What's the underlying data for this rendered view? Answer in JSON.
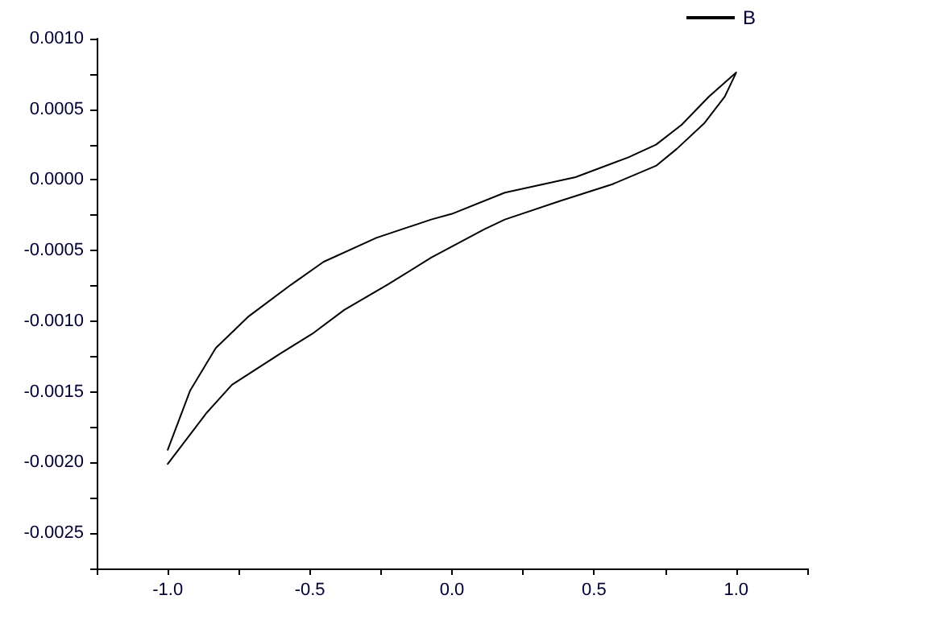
{
  "chart_data": {
    "type": "line",
    "series": [
      {
        "name": "B",
        "color": "#000000",
        "x": [
          -1.0,
          -0.864,
          -0.774,
          -0.605,
          -0.492,
          -0.379,
          -0.226,
          -0.073,
          0.113,
          0.186,
          0.379,
          0.565,
          0.718,
          0.791,
          0.887,
          0.96,
          1.0,
          0.904,
          0.808,
          0.718,
          0.621,
          0.435,
          0.186,
          0.0,
          -0.073,
          -0.266,
          -0.452,
          -0.565,
          -0.718,
          -0.831,
          -0.921,
          -1.0
        ],
        "values": [
          -0.00201,
          -0.00165,
          -0.00145,
          -0.00123,
          -0.00109,
          -0.00092,
          -0.00074,
          -0.00055,
          -0.00035,
          -0.00028,
          -0.00015,
          -3e-05,
          0.0001,
          0.00022,
          0.0004,
          0.00059,
          0.00076,
          0.00059,
          0.00039,
          0.00025,
          0.00016,
          2e-05,
          -9e-05,
          -0.00024,
          -0.00028,
          -0.00041,
          -0.00058,
          -0.00074,
          -0.00097,
          -0.00119,
          -0.00149,
          -0.00191
        ]
      }
    ],
    "xlim": [
      -1.25,
      1.25
    ],
    "xticks": [
      {
        "value": -1.25,
        "label": null
      },
      {
        "value": -1.0,
        "label": "-1.0"
      },
      {
        "value": -0.75,
        "label": null
      },
      {
        "value": -0.5,
        "label": "-0.5"
      },
      {
        "value": -0.25,
        "label": null
      },
      {
        "value": 0,
        "label": "0.0"
      },
      {
        "value": 0.25,
        "label": null
      },
      {
        "value": 0.5,
        "label": "0.5"
      },
      {
        "value": 0.75,
        "label": null
      },
      {
        "value": 1.0,
        "label": "1.0"
      },
      {
        "value": 1.25,
        "label": null
      }
    ],
    "ylim": [
      -0.00275,
      0.001
    ],
    "yticks": [
      {
        "value": -0.00275,
        "label": null
      },
      {
        "value": -0.0025,
        "label": "-0.0025"
      },
      {
        "value": -0.00225,
        "label": null
      },
      {
        "value": -0.002,
        "label": "-0.0020"
      },
      {
        "value": -0.00175,
        "label": null
      },
      {
        "value": -0.0015,
        "label": "-0.0015"
      },
      {
        "value": -0.00125,
        "label": null
      },
      {
        "value": -0.001,
        "label": "-0.0010"
      },
      {
        "value": -0.00075,
        "label": null
      },
      {
        "value": -0.0005,
        "label": "-0.0005"
      },
      {
        "value": -0.00025,
        "label": null
      },
      {
        "value": 0,
        "label": "0.0000"
      },
      {
        "value": 0.00025,
        "label": null
      },
      {
        "value": 0.0005,
        "label": "0.0005"
      },
      {
        "value": 0.00075,
        "label": null
      },
      {
        "value": 0.001,
        "label": "0.0010"
      }
    ],
    "grid": false,
    "legend": "top right",
    "marker": "none",
    "line_style": "solid"
  }
}
